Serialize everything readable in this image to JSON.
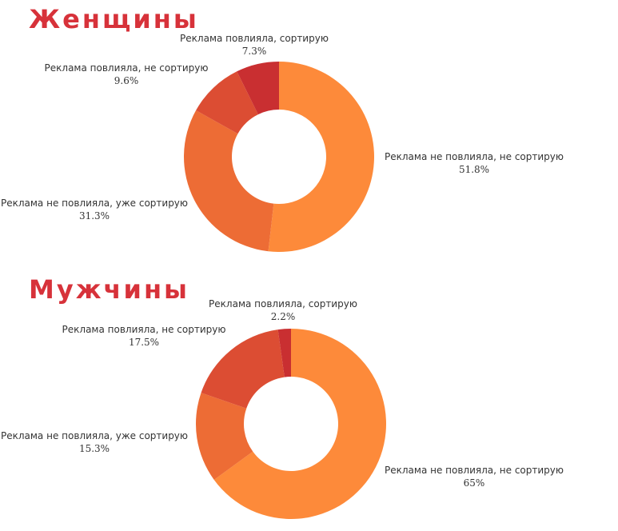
{
  "chart_data": [
    {
      "type": "pie",
      "title": "Женщины",
      "categories": [
        "Реклама не повлияла, не сортирую",
        "Реклама не повлияла, уже сортирую",
        "Реклама повлияла, не сортирую",
        "Реклама повлияла, сортирую"
      ],
      "values": [
        51.8,
        31.3,
        9.6,
        7.3
      ],
      "value_labels": [
        "51.8%",
        "31.3%",
        "9.6%",
        "7.3%"
      ],
      "colors": [
        "#fd8a3a",
        "#ed6c35",
        "#dc4d33",
        "#c92f31"
      ]
    },
    {
      "type": "pie",
      "title": "Мужчины",
      "categories": [
        "Реклама не повлияла, не сортирую",
        "Реклама не повлияла, уже сортирую",
        "Реклама повлияла, не сортирую",
        "Реклама повлияла, сортирую"
      ],
      "values": [
        65,
        15.3,
        17.5,
        2.2
      ],
      "value_labels": [
        "65%",
        "15.3%",
        "17.5%",
        "2.2%"
      ],
      "colors": [
        "#fd8a3a",
        "#ed6c35",
        "#dc4d33",
        "#c92f31"
      ]
    }
  ]
}
